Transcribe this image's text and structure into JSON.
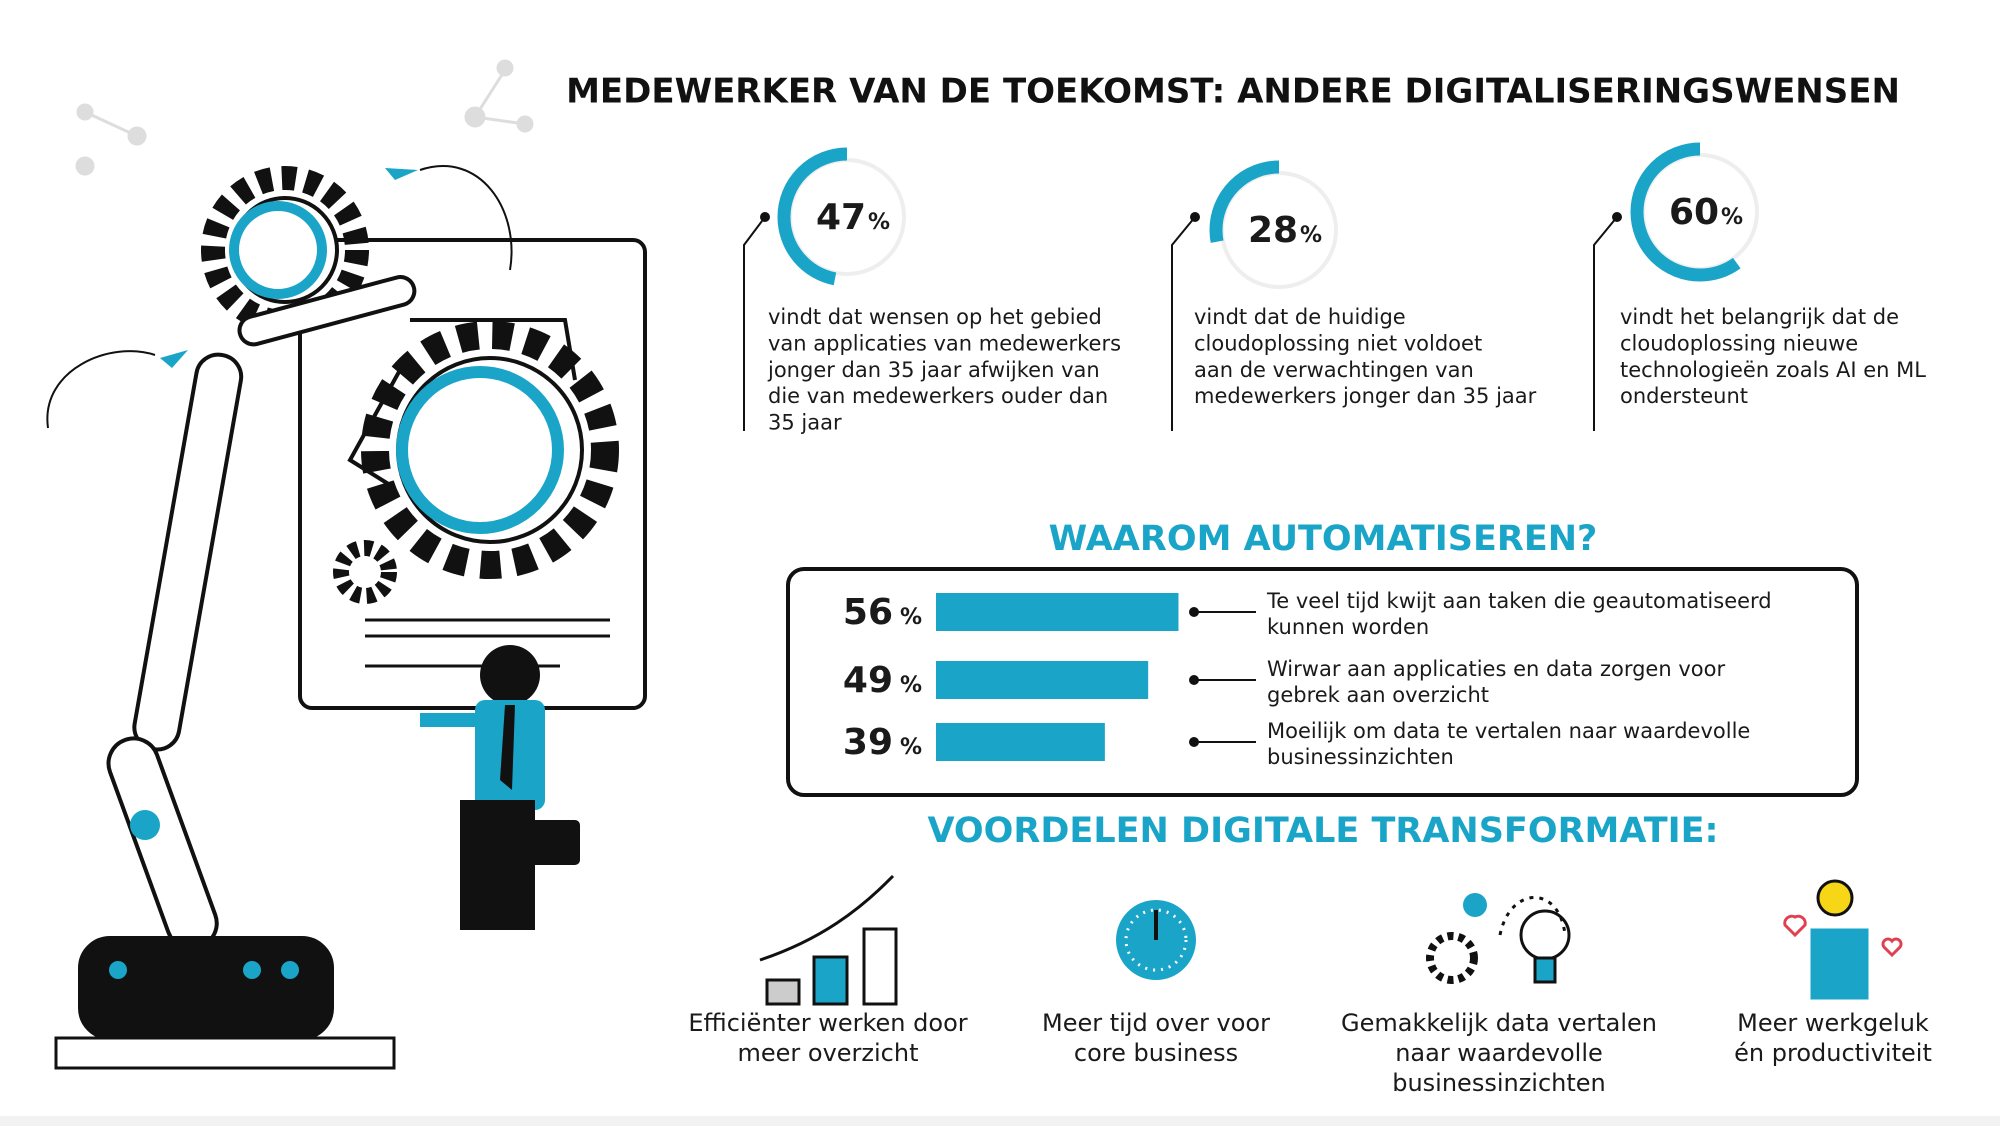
{
  "header": {
    "title": "MEDEWERKER VAN DE TOEKOMST: ANDERE DIGITALISERINGSWENSEN"
  },
  "percent_sign": "%",
  "stats": [
    {
      "value": 47,
      "description": [
        "vindt dat wensen op het gebied",
        "van applicaties van medewerkers",
        "jonger dan 35 jaar afwijken van",
        "die van medewerkers ouder dan",
        "35 jaar"
      ]
    },
    {
      "value": 28,
      "description": [
        "vindt dat de huidige",
        "cloudoplossing niet voldoet",
        "aan de verwachtingen van",
        "medewerkers jonger dan 35 jaar"
      ]
    },
    {
      "value": 60,
      "description": [
        "vindt het belangrijk dat de",
        "cloudoplossing nieuwe",
        "technologieën zoals AI en ML",
        "ondersteunt"
      ]
    }
  ],
  "automation": {
    "title": "WAAROM AUTOMATISEREN?",
    "items": [
      {
        "value": 56,
        "description": [
          "Te veel tijd kwijt aan taken die geautomatiseerd",
          "kunnen worden"
        ]
      },
      {
        "value": 49,
        "description": [
          "Wirwar aan applicaties en data zorgen voor",
          "gebrek aan overzicht"
        ]
      },
      {
        "value": 39,
        "description": [
          "Moeilijk om data te vertalen naar waardevolle",
          "businessinzichten"
        ]
      }
    ]
  },
  "benefits": {
    "title": "VOORDELEN DIGITALE TRANSFORMATIE:",
    "items": [
      {
        "label": [
          "Efficiënter werken door",
          "meer overzicht"
        ]
      },
      {
        "label": [
          "Meer tijd over voor",
          "core business"
        ]
      },
      {
        "label": [
          "Gemakkelijk data vertalen",
          "naar waardevolle",
          "businessinzichten"
        ]
      },
      {
        "label": [
          "Meer werkgeluk",
          "én productiviteit"
        ]
      }
    ]
  }
}
